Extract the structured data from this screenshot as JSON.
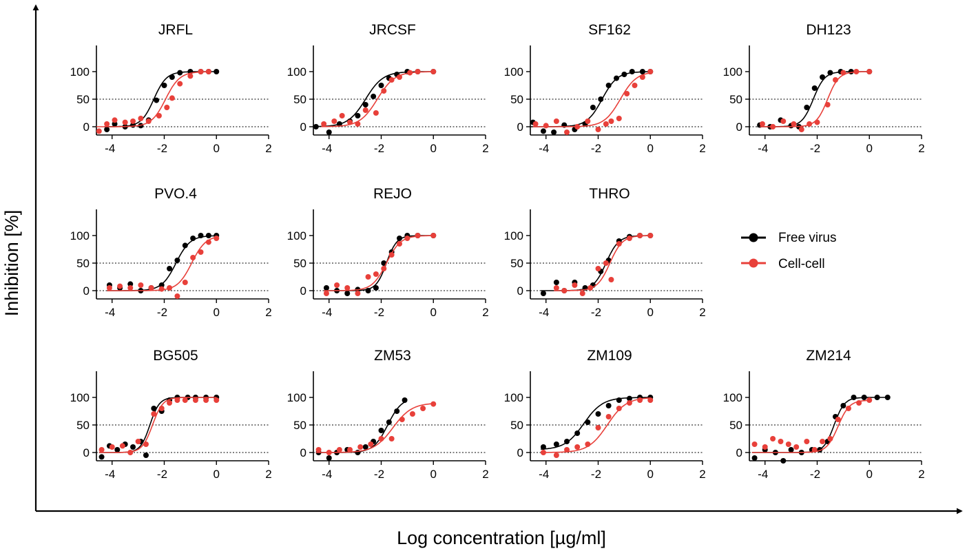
{
  "figure": {
    "xlabel": "Log concentration [µg/ml]",
    "ylabel": "Inhibition [%]"
  },
  "legend": {
    "items": [
      {
        "label": "Free virus",
        "color": "#000000"
      },
      {
        "label": "Cell-cell",
        "color": "#e8403a"
      }
    ]
  },
  "chart_data": [
    {
      "type": "scatter",
      "title": "JRFL",
      "xlim": [
        -4.6,
        2
      ],
      "ylim": [
        -15,
        145
      ],
      "xticks": [
        -4,
        -2,
        0,
        2
      ],
      "yticks": [
        0,
        50,
        100
      ],
      "reference_lines_y": [
        0,
        50
      ],
      "series": [
        {
          "name": "Free virus",
          "ec50": -2.4,
          "hill": 1.8,
          "bottom": 0,
          "top": 100,
          "x": [
            -4.2,
            -3.9,
            -3.5,
            -3.2,
            -2.9,
            -2.6,
            -2.3,
            -2.0,
            -1.7,
            -1.4,
            -1.0,
            -0.6,
            -0.3,
            0.0
          ],
          "y": [
            -5,
            5,
            0,
            3,
            2,
            12,
            48,
            75,
            90,
            98,
            100,
            100,
            100,
            100
          ]
        },
        {
          "name": "Cell-cell",
          "ec50": -1.95,
          "hill": 1.6,
          "bottom": 0,
          "top": 100,
          "x": [
            -4.5,
            -4.2,
            -3.9,
            -3.5,
            -3.2,
            -2.9,
            -2.6,
            -2.2,
            -1.9,
            -1.7,
            -1.4,
            -1.0,
            -0.6,
            -0.3
          ],
          "y": [
            -8,
            5,
            12,
            8,
            10,
            15,
            10,
            20,
            35,
            52,
            78,
            92,
            100,
            100
          ]
        }
      ]
    },
    {
      "type": "scatter",
      "title": "JRCSF",
      "xlim": [
        -4.6,
        2
      ],
      "ylim": [
        -15,
        145
      ],
      "xticks": [
        -4,
        -2,
        0,
        2
      ],
      "yticks": [
        0,
        50,
        100
      ],
      "reference_lines_y": [
        0,
        50
      ],
      "series": [
        {
          "name": "Free virus",
          "ec50": -2.6,
          "hill": 1.3,
          "bottom": 0,
          "top": 100,
          "x": [
            -4.5,
            -4.0,
            -3.6,
            -3.2,
            -2.9,
            -2.6,
            -2.3,
            -2.0,
            -1.7,
            -1.4,
            -1.0,
            -0.6,
            0.0
          ],
          "y": [
            0,
            -10,
            5,
            10,
            20,
            40,
            55,
            75,
            88,
            95,
            100,
            100,
            100
          ]
        },
        {
          "name": "Cell-cell",
          "ec50": -2.15,
          "hill": 1.3,
          "bottom": 0,
          "top": 100,
          "x": [
            -4.2,
            -3.8,
            -3.5,
            -3.2,
            -2.9,
            -2.6,
            -2.2,
            -1.9,
            -1.6,
            -1.3,
            -0.9,
            -0.6,
            0.0
          ],
          "y": [
            5,
            10,
            20,
            8,
            5,
            30,
            25,
            65,
            85,
            90,
            98,
            100,
            100
          ]
        }
      ]
    },
    {
      "type": "scatter",
      "title": "SF162",
      "xlim": [
        -4.6,
        2
      ],
      "ylim": [
        -15,
        145
      ],
      "xticks": [
        -4,
        -2,
        0,
        2
      ],
      "yticks": [
        0,
        50,
        100
      ],
      "reference_lines_y": [
        0,
        50
      ],
      "series": [
        {
          "name": "Free virus",
          "ec50": -1.85,
          "hill": 1.5,
          "bottom": 0,
          "top": 100,
          "x": [
            -4.5,
            -4.1,
            -3.7,
            -3.3,
            -2.9,
            -2.5,
            -2.2,
            -1.9,
            -1.6,
            -1.3,
            -1.0,
            -0.7,
            -0.3,
            0.0
          ],
          "y": [
            8,
            -8,
            -10,
            3,
            -5,
            5,
            35,
            50,
            75,
            88,
            95,
            100,
            100,
            100
          ]
        },
        {
          "name": "Cell-cell",
          "ec50": -1.15,
          "hill": 1.4,
          "bottom": 0,
          "top": 100,
          "x": [
            -4.4,
            -4.0,
            -3.6,
            -3.2,
            -2.8,
            -2.4,
            -2.0,
            -1.7,
            -1.5,
            -1.2,
            -0.9,
            -0.6,
            -0.3,
            0.0
          ],
          "y": [
            5,
            2,
            10,
            -10,
            0,
            10,
            -5,
            5,
            10,
            15,
            60,
            75,
            90,
            100
          ]
        }
      ]
    },
    {
      "type": "scatter",
      "title": "DH123",
      "xlim": [
        -4.6,
        2
      ],
      "ylim": [
        -15,
        145
      ],
      "xticks": [
        -4,
        -2,
        0,
        2
      ],
      "yticks": [
        0,
        50,
        100
      ],
      "reference_lines_y": [
        0,
        50
      ],
      "series": [
        {
          "name": "Free virus",
          "ec50": -2.15,
          "hill": 2.0,
          "bottom": 0,
          "top": 100,
          "x": [
            -4.2,
            -3.8,
            -3.4,
            -3.0,
            -2.7,
            -2.4,
            -2.1,
            -1.8,
            -1.5,
            -1.1,
            -0.7,
            0.0
          ],
          "y": [
            3,
            0,
            12,
            2,
            0,
            35,
            70,
            90,
            98,
            100,
            100,
            100
          ]
        },
        {
          "name": "Cell-cell",
          "ec50": -1.6,
          "hill": 2.0,
          "bottom": 0,
          "top": 100,
          "x": [
            -4.1,
            -3.7,
            -3.3,
            -2.9,
            -2.6,
            -2.3,
            -2.0,
            -1.6,
            -1.3,
            -1.0,
            -0.5,
            0.0
          ],
          "y": [
            5,
            0,
            10,
            5,
            -5,
            5,
            8,
            40,
            85,
            98,
            100,
            100
          ]
        }
      ]
    },
    {
      "type": "scatter",
      "title": "PVO.4",
      "xlim": [
        -4.6,
        2
      ],
      "ylim": [
        -15,
        145
      ],
      "xticks": [
        -4,
        -2,
        0,
        2
      ],
      "yticks": [
        0,
        50,
        100
      ],
      "reference_lines_y": [
        0,
        50
      ],
      "series": [
        {
          "name": "Free virus",
          "ec50": -1.55,
          "hill": 1.6,
          "bottom": 0,
          "top": 100,
          "x": [
            -4.1,
            -3.7,
            -3.3,
            -2.9,
            -2.5,
            -2.1,
            -1.8,
            -1.5,
            -1.2,
            -0.9,
            -0.6,
            -0.3,
            0.0
          ],
          "y": [
            10,
            5,
            12,
            0,
            5,
            10,
            40,
            55,
            82,
            95,
            100,
            100,
            100
          ]
        },
        {
          "name": "Cell-cell",
          "ec50": -0.95,
          "hill": 1.6,
          "bottom": 0,
          "top": 100,
          "x": [
            -4.1,
            -3.7,
            -3.3,
            -2.9,
            -2.5,
            -2.1,
            -1.8,
            -1.5,
            -1.2,
            -0.9,
            -0.6,
            -0.3,
            0.0
          ],
          "y": [
            5,
            8,
            5,
            10,
            5,
            3,
            5,
            -10,
            15,
            60,
            70,
            88,
            95
          ]
        }
      ]
    },
    {
      "type": "scatter",
      "title": "REJO",
      "xlim": [
        -4.6,
        2
      ],
      "ylim": [
        -15,
        145
      ],
      "xticks": [
        -4,
        -2,
        0,
        2
      ],
      "yticks": [
        0,
        50,
        100
      ],
      "reference_lines_y": [
        0,
        50
      ],
      "series": [
        {
          "name": "Free virus",
          "ec50": -1.8,
          "hill": 2.2,
          "bottom": 0,
          "top": 100,
          "x": [
            -4.1,
            -3.7,
            -3.3,
            -2.9,
            -2.5,
            -2.2,
            -1.9,
            -1.6,
            -1.3,
            -1.0,
            -0.6,
            0.0
          ],
          "y": [
            5,
            0,
            -5,
            2,
            0,
            5,
            50,
            70,
            95,
            100,
            100,
            100
          ]
        },
        {
          "name": "Cell-cell",
          "ec50": -1.8,
          "hill": 1.6,
          "bottom": 0,
          "top": 100,
          "x": [
            -4.1,
            -3.7,
            -3.3,
            -2.9,
            -2.5,
            -2.2,
            -1.9,
            -1.6,
            -1.3,
            -1.0,
            -0.6,
            0.0
          ],
          "y": [
            -5,
            10,
            5,
            -5,
            25,
            30,
            40,
            65,
            85,
            95,
            100,
            100
          ]
        }
      ]
    },
    {
      "type": "scatter",
      "title": "THRO",
      "xlim": [
        -4.6,
        2
      ],
      "ylim": [
        -15,
        145
      ],
      "xticks": [
        -4,
        -2,
        0,
        2
      ],
      "yticks": [
        0,
        50,
        100
      ],
      "reference_lines_y": [
        0,
        50
      ],
      "series": [
        {
          "name": "Free virus",
          "ec50": -1.7,
          "hill": 1.8,
          "bottom": 0,
          "top": 100,
          "x": [
            -4.1,
            -3.6,
            -3.3,
            -2.9,
            -2.5,
            -2.2,
            -1.9,
            -1.6,
            -1.2,
            -0.8,
            -0.4,
            0.0
          ],
          "y": [
            -5,
            15,
            0,
            15,
            5,
            10,
            35,
            55,
            90,
            98,
            100,
            100
          ]
        },
        {
          "name": "Cell-cell",
          "ec50": -1.55,
          "hill": 1.8,
          "bottom": 0,
          "top": 100,
          "x": [
            -3.6,
            -3.3,
            -2.9,
            -2.6,
            -2.3,
            -2.0,
            -1.7,
            -1.5,
            -1.2,
            -0.8,
            -0.4,
            0.0
          ],
          "y": [
            5,
            0,
            10,
            -5,
            5,
            40,
            50,
            20,
            85,
            95,
            100,
            100
          ]
        }
      ]
    },
    {
      "type": "scatter",
      "title": "BG505",
      "xlim": [
        -4.6,
        2
      ],
      "ylim": [
        -15,
        145
      ],
      "xticks": [
        -4,
        -2,
        0,
        2
      ],
      "yticks": [
        0,
        50,
        100
      ],
      "reference_lines_y": [
        0,
        50
      ],
      "series": [
        {
          "name": "Free virus",
          "ec50": -2.55,
          "hill": 2.4,
          "bottom": 0,
          "top": 100,
          "x": [
            -4.4,
            -4.1,
            -3.8,
            -3.5,
            -3.2,
            -2.9,
            -2.7,
            -2.4,
            -2.1,
            -1.8,
            -1.5,
            -1.1,
            -0.8,
            -0.4,
            0.0
          ],
          "y": [
            -8,
            12,
            5,
            15,
            10,
            20,
            -5,
            80,
            75,
            95,
            100,
            100,
            100,
            100,
            100
          ]
        },
        {
          "name": "Cell-cell",
          "ec50": -2.45,
          "hill": 2.2,
          "bottom": 0,
          "top": 100,
          "x": [
            -4.4,
            -4.0,
            -3.6,
            -3.3,
            -3.0,
            -2.7,
            -2.4,
            -2.1,
            -1.8,
            -1.5,
            -1.2,
            -0.8,
            -0.4,
            0.0
          ],
          "y": [
            5,
            10,
            12,
            0,
            20,
            15,
            70,
            80,
            90,
            95,
            95,
            95,
            95,
            95
          ]
        }
      ]
    },
    {
      "type": "scatter",
      "title": "ZM53",
      "xlim": [
        -4.6,
        2
      ],
      "ylim": [
        -15,
        145
      ],
      "xticks": [
        -4,
        -2,
        0,
        2
      ],
      "yticks": [
        0,
        50,
        100
      ],
      "reference_lines_y": [
        0,
        50
      ],
      "series": [
        {
          "name": "Free virus",
          "ec50": -1.75,
          "hill": 1.6,
          "bottom": 0,
          "top": 100,
          "x": [
            -4.4,
            -4.0,
            -3.7,
            -3.3,
            -2.9,
            -2.6,
            -2.3,
            -2.0,
            -1.7,
            -1.4,
            -1.1
          ],
          "y": [
            0,
            -10,
            0,
            5,
            0,
            10,
            20,
            40,
            55,
            75,
            95
          ]
        },
        {
          "name": "Cell-cell",
          "ec50": -1.55,
          "hill": 1.2,
          "bottom": 0,
          "top": 90,
          "x": [
            -4.4,
            -4.0,
            -3.6,
            -3.2,
            -2.8,
            -2.4,
            -2.0,
            -1.6,
            -1.2,
            -0.8,
            -0.4,
            0.0
          ],
          "y": [
            5,
            0,
            5,
            5,
            10,
            15,
            25,
            25,
            60,
            70,
            80,
            88
          ]
        }
      ]
    },
    {
      "type": "scatter",
      "title": "ZM109",
      "xlim": [
        -4.6,
        2
      ],
      "ylim": [
        -15,
        145
      ],
      "xticks": [
        -4,
        -2,
        0,
        2
      ],
      "yticks": [
        0,
        50,
        100
      ],
      "reference_lines_y": [
        0,
        50
      ],
      "series": [
        {
          "name": "Free virus",
          "ec50": -2.55,
          "hill": 1.2,
          "bottom": 5,
          "top": 100,
          "x": [
            -4.1,
            -3.6,
            -3.2,
            -2.8,
            -2.4,
            -2.0,
            -1.6,
            -1.2,
            -0.8,
            -0.4,
            0.0
          ],
          "y": [
            10,
            15,
            20,
            35,
            55,
            70,
            85,
            95,
            98,
            100,
            100
          ]
        },
        {
          "name": "Cell-cell",
          "ec50": -1.65,
          "hill": 1.2,
          "bottom": 0,
          "top": 100,
          "x": [
            -4.1,
            -3.6,
            -3.2,
            -2.8,
            -2.4,
            -2.0,
            -1.6,
            -1.2,
            -0.8,
            -0.4,
            0.0
          ],
          "y": [
            0,
            -5,
            5,
            10,
            15,
            45,
            65,
            80,
            90,
            95,
            95
          ]
        }
      ]
    },
    {
      "type": "scatter",
      "title": "ZM214",
      "xlim": [
        -4.6,
        2
      ],
      "ylim": [
        -15,
        145
      ],
      "xticks": [
        -4,
        -2,
        0,
        2
      ],
      "yticks": [
        0,
        50,
        100
      ],
      "reference_lines_y": [
        0,
        50
      ],
      "series": [
        {
          "name": "Free virus",
          "ec50": -1.35,
          "hill": 2.2,
          "bottom": 0,
          "top": 100,
          "x": [
            -4.4,
            -4.0,
            -3.6,
            -3.3,
            -3.0,
            -2.6,
            -2.2,
            -1.9,
            -1.6,
            -1.3,
            -1.0,
            -0.6,
            -0.2,
            0.3,
            0.7
          ],
          "y": [
            -10,
            5,
            0,
            -15,
            5,
            0,
            5,
            5,
            20,
            65,
            85,
            100,
            100,
            100,
            100
          ]
        },
        {
          "name": "Cell-cell",
          "ec50": -1.2,
          "hill": 2.0,
          "bottom": 0,
          "top": 95,
          "x": [
            -4.4,
            -4.0,
            -3.7,
            -3.4,
            -3.1,
            -2.8,
            -2.4,
            -2.1,
            -1.8,
            -1.5,
            -1.2,
            -0.8,
            -0.4,
            0.0
          ],
          "y": [
            15,
            10,
            25,
            20,
            15,
            10,
            20,
            5,
            20,
            25,
            60,
            80,
            90,
            95
          ]
        }
      ]
    }
  ]
}
